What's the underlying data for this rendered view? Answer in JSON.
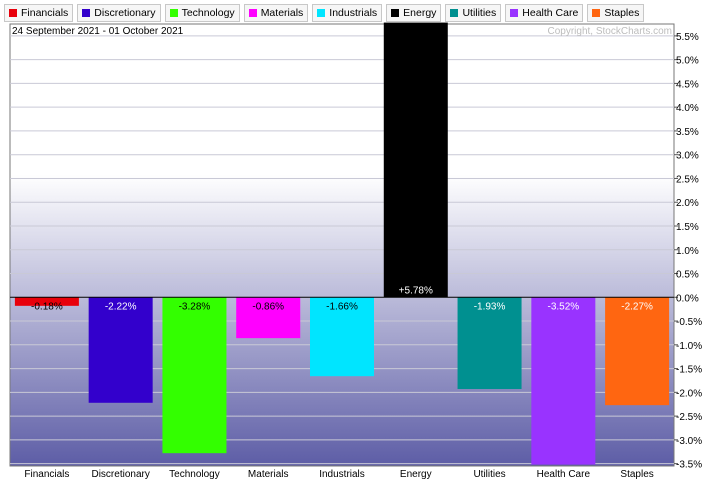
{
  "header": {
    "date_range": "24 September 2021 - 01 October 2021",
    "copyright": "Copyright, StockCharts.com"
  },
  "chart_data": {
    "type": "bar",
    "categories": [
      "Financials",
      "Discretionary",
      "Technology",
      "Materials",
      "Industrials",
      "Energy",
      "Utilities",
      "Health Care",
      "Staples"
    ],
    "values": [
      -0.18,
      -2.22,
      -3.28,
      -0.86,
      -1.66,
      5.78,
      -1.93,
      -3.52,
      -2.27
    ],
    "data_labels": [
      "-0.18%",
      "-2.22%",
      "-3.28%",
      "-0.86%",
      "-1.66%",
      "+5.78%",
      "-1.93%",
      "-3.52%",
      "-2.27%"
    ],
    "colors": [
      "#e8000b",
      "#3300cc",
      "#33ff00",
      "#ff00ff",
      "#00e5ff",
      "#000000",
      "#009090",
      "#9933ff",
      "#ff6611"
    ],
    "ylim": [
      -3.55,
      5.75
    ],
    "yticks": [
      5.5,
      5.0,
      4.5,
      4.0,
      3.5,
      3.0,
      2.5,
      2.0,
      1.5,
      1.0,
      0.5,
      0.0,
      -0.5,
      -1.0,
      -1.5,
      -2.0,
      -2.5,
      -3.0,
      -3.5
    ],
    "ytick_labels": [
      "5.5%",
      "5.0%",
      "4.5%",
      "4.0%",
      "3.5%",
      "3.0%",
      "2.5%",
      "2.0%",
      "1.5%",
      "1.0%",
      "0.5%",
      "0.0%",
      "-0.5%",
      "-1.0%",
      "-1.5%",
      "-2.0%",
      "-2.5%",
      "-3.0%",
      "-3.5%"
    ],
    "legend": {
      "placement": "top-left",
      "entries": [
        "Financials",
        "Discretionary",
        "Technology",
        "Materials",
        "Industrials",
        "Energy",
        "Utilities",
        "Health Care",
        "Staples"
      ]
    },
    "grid": true
  }
}
